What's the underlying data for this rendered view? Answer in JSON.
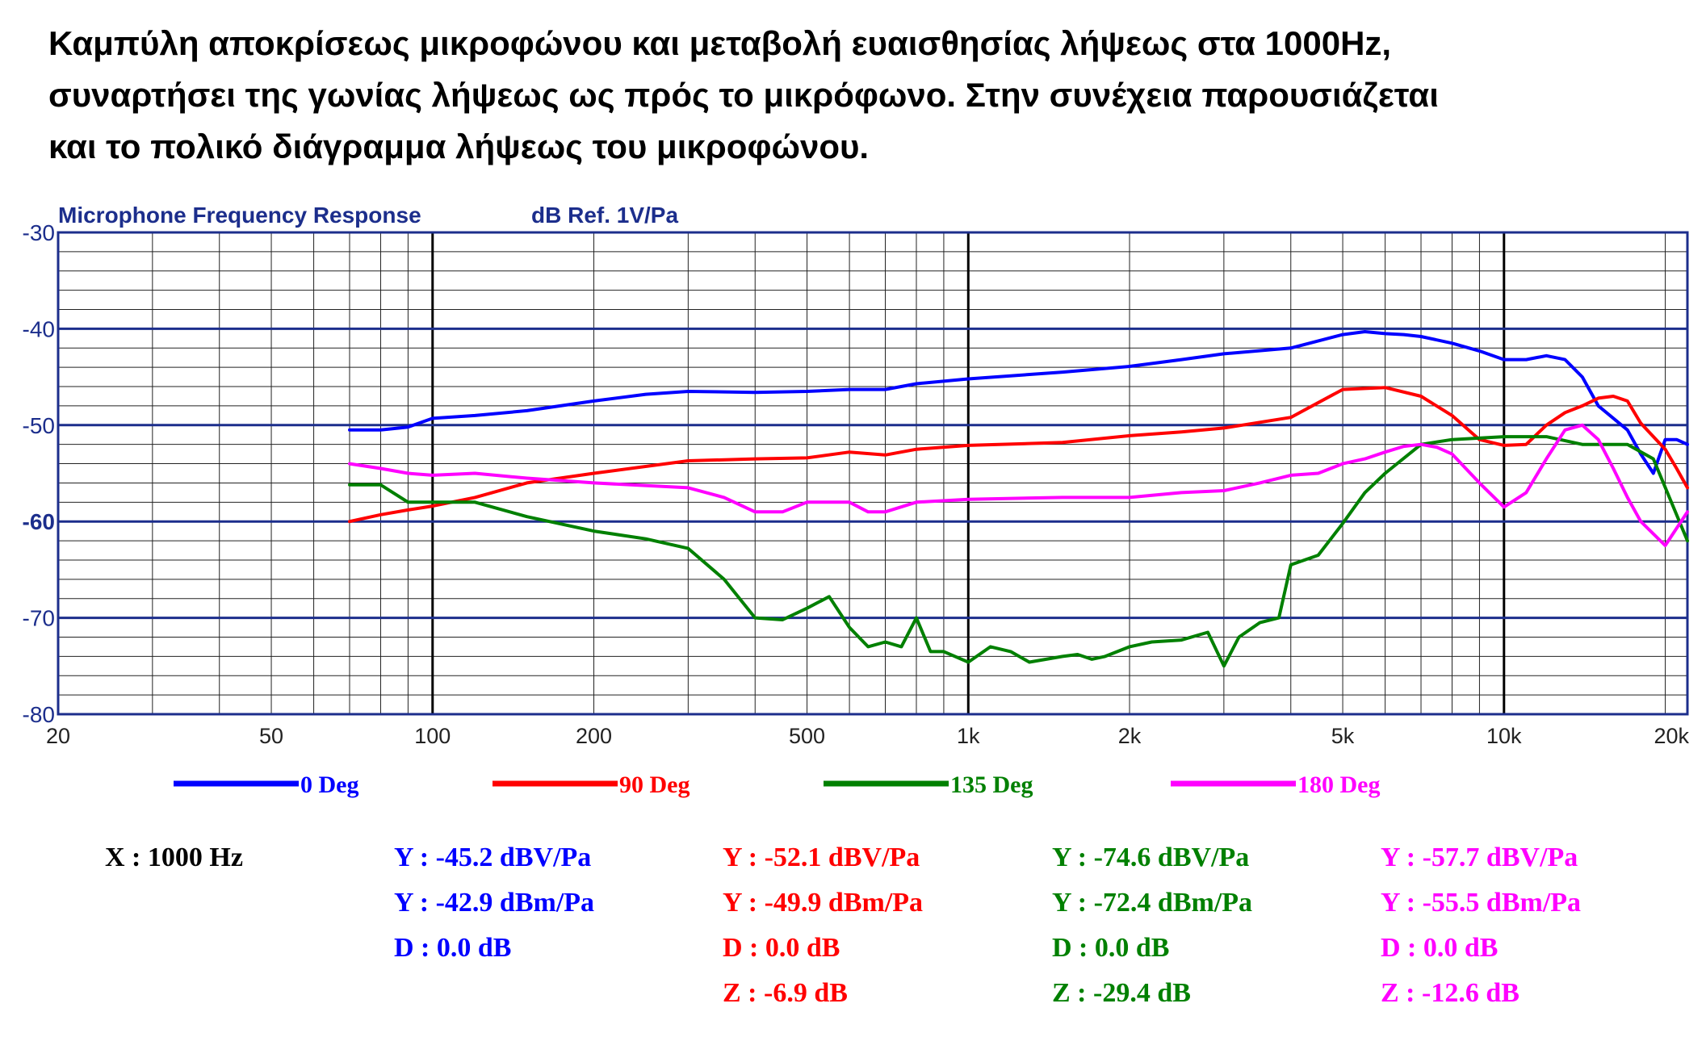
{
  "intro": [
    "Καμπύλη αποκρίσεως μικροφώνου και μεταβολή ευαισθησίας λήψεως στα 1000Hz,",
    "συναρτήσει της γωνίας λήψεως ως πρός το μικρόφωνο. Στην συνέχεια παρουσιάζεται",
    "και το πολικό διάγραμμα λήψεως του μικροφώνου."
  ],
  "chart_data": {
    "type": "line",
    "title": "Microphone Frequency Response",
    "ylabel": "dB Ref. 1V/Pa",
    "xscale": "log",
    "xlim": [
      20,
      22000
    ],
    "ylim": [
      -80,
      -30
    ],
    "grid": true,
    "legend": "bottom",
    "x_ticks": [
      {
        "v": 20,
        "label": "20"
      },
      {
        "v": 50,
        "label": "50"
      },
      {
        "v": 100,
        "label": "100"
      },
      {
        "v": 200,
        "label": "200"
      },
      {
        "v": 500,
        "label": "500"
      },
      {
        "v": 1000,
        "label": "1k"
      },
      {
        "v": 2000,
        "label": "2k"
      },
      {
        "v": 5000,
        "label": "5k"
      },
      {
        "v": 10000,
        "label": "10k"
      },
      {
        "v": 20000,
        "label": "20k"
      }
    ],
    "y_ticks": [
      {
        "v": -30,
        "label": "-30"
      },
      {
        "v": -40,
        "label": "-40"
      },
      {
        "v": -50,
        "label": "-50"
      },
      {
        "v": -60,
        "label": "-60"
      },
      {
        "v": -70,
        "label": "-70"
      },
      {
        "v": -80,
        "label": "-80"
      }
    ],
    "series": [
      {
        "name": "0 Deg",
        "color": "#0000ff",
        "x": [
          70,
          80,
          90,
          100,
          120,
          150,
          200,
          250,
          300,
          400,
          500,
          600,
          700,
          800,
          1000,
          1500,
          2000,
          2500,
          3000,
          4000,
          5000,
          5500,
          6000,
          6500,
          7000,
          8000,
          9000,
          10000,
          11000,
          12000,
          13000,
          14000,
          15000,
          17000,
          18000,
          19000,
          20000,
          21000,
          22000
        ],
        "y": [
          -50.5,
          -50.5,
          -50.2,
          -49.3,
          -49,
          -48.5,
          -47.5,
          -46.8,
          -46.5,
          -46.6,
          -46.5,
          -46.3,
          -46.3,
          -45.7,
          -45.2,
          -44.5,
          -43.9,
          -43.2,
          -42.6,
          -42,
          -40.6,
          -40.3,
          -40.5,
          -40.6,
          -40.8,
          -41.5,
          -42.3,
          -43.2,
          -43.2,
          -42.8,
          -43.2,
          -45,
          -48,
          -50.5,
          -53,
          -55,
          -51.5,
          -51.5,
          -52
        ]
      },
      {
        "name": "90 Deg",
        "color": "#ff0000",
        "x": [
          70,
          80,
          90,
          100,
          120,
          150,
          200,
          300,
          400,
          500,
          600,
          700,
          800,
          1000,
          1500,
          2000,
          2500,
          3000,
          4000,
          5000,
          6000,
          7000,
          8000,
          9000,
          10000,
          11000,
          12000,
          13000,
          14000,
          15000,
          16000,
          17000,
          18000,
          20000,
          21000,
          22000
        ],
        "y": [
          -60,
          -59.3,
          -58.8,
          -58.4,
          -57.5,
          -56,
          -55,
          -53.7,
          -53.5,
          -53.4,
          -52.8,
          -53.1,
          -52.5,
          -52.1,
          -51.8,
          -51.1,
          -50.7,
          -50.3,
          -49.2,
          -46.3,
          -46.1,
          -47,
          -49,
          -51.5,
          -52.1,
          -52,
          -50,
          -48.7,
          -48,
          -47.2,
          -47,
          -47.5,
          -49.8,
          -52.5,
          -54.5,
          -56.5
        ]
      },
      {
        "name": "135 Deg",
        "color": "#008000",
        "x": [
          70,
          80,
          90,
          100,
          120,
          150,
          200,
          250,
          300,
          350,
          400,
          450,
          500,
          550,
          600,
          650,
          700,
          750,
          800,
          850,
          900,
          1000,
          1100,
          1200,
          1300,
          1500,
          1600,
          1700,
          1800,
          2000,
          2200,
          2500,
          2800,
          3000,
          3200,
          3500,
          3800,
          4000,
          4500,
          5000,
          5500,
          6000,
          7000,
          8000,
          10000,
          12000,
          14000,
          15000,
          17000,
          19000,
          22000
        ],
        "y": [
          -56.2,
          -56.2,
          -58,
          -58,
          -58,
          -59.5,
          -61,
          -61.8,
          -62.8,
          -66,
          -70,
          -70.2,
          -69,
          -67.8,
          -71,
          -73,
          -72.5,
          -73,
          -70,
          -73.5,
          -73.5,
          -74.6,
          -73,
          -73.5,
          -74.6,
          -74,
          -73.8,
          -74.3,
          -74,
          -73,
          -72.5,
          -72.3,
          -71.5,
          -75,
          -72,
          -70.5,
          -70,
          -64.5,
          -63.5,
          -60.2,
          -57,
          -55,
          -52,
          -51.5,
          -51.2,
          -51.2,
          -52,
          -52,
          -52,
          -53.5,
          -62
        ]
      },
      {
        "name": "180 Deg",
        "color": "#ff00ff",
        "x": [
          70,
          80,
          90,
          100,
          120,
          150,
          200,
          300,
          350,
          400,
          450,
          500,
          550,
          600,
          650,
          700,
          800,
          1000,
          1500,
          2000,
          2500,
          3000,
          3500,
          4000,
          4500,
          5000,
          5500,
          6000,
          6500,
          7000,
          7500,
          8000,
          9000,
          10000,
          11000,
          12000,
          13000,
          14000,
          15000,
          16000,
          17000,
          18000,
          20000,
          22000
        ],
        "y": [
          -54,
          -54.5,
          -55,
          -55.2,
          -55,
          -55.5,
          -56,
          -56.5,
          -57.5,
          -59,
          -59,
          -58,
          -58,
          -58,
          -59,
          -59,
          -58,
          -57.7,
          -57.5,
          -57.5,
          -57,
          -56.8,
          -56,
          -55.2,
          -55,
          -54,
          -53.5,
          -52.8,
          -52.2,
          -52,
          -52.3,
          -53,
          -56,
          -58.5,
          -57,
          -53.5,
          -50.5,
          -50,
          -51.5,
          -54.5,
          -57.5,
          -60,
          -62.5,
          -59
        ]
      }
    ]
  },
  "readout": {
    "x": "X : 1000 Hz",
    "columns": [
      {
        "color": "#0000ff",
        "lines": [
          "Y : -45.2 dBV/Pa",
          "Y : -42.9 dBm/Pa",
          "D : 0.0 dB"
        ]
      },
      {
        "color": "#ff0000",
        "lines": [
          "Y : -52.1 dBV/Pa",
          "Y : -49.9 dBm/Pa",
          "D : 0.0 dB",
          "Z : -6.9 dB"
        ]
      },
      {
        "color": "#008000",
        "lines": [
          "Y : -74.6 dBV/Pa",
          "Y : -72.4 dBm/Pa",
          "D : 0.0 dB",
          "Z : -29.4 dB"
        ]
      },
      {
        "color": "#ff00ff",
        "lines": [
          "Y : -57.7 dBV/Pa",
          "Y : -55.5 dBm/Pa",
          "D : 0.0 dB",
          "Z : -12.6 dB"
        ]
      }
    ]
  }
}
